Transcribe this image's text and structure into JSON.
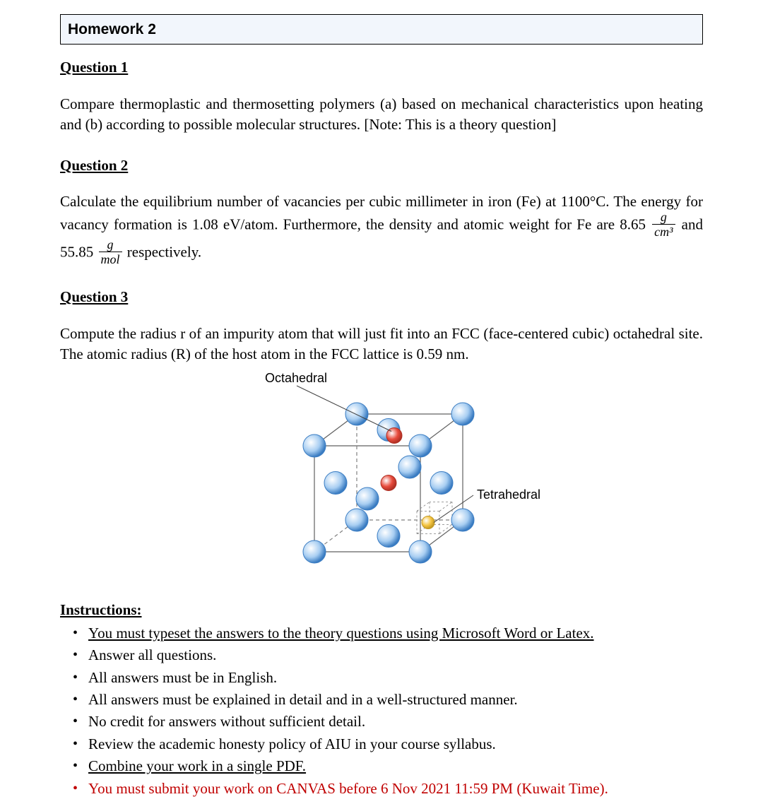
{
  "title": "Homework 2",
  "q1": {
    "heading": "Question 1",
    "body": "Compare thermoplastic and thermosetting polymers (a) based on mechanical characteristics upon heating and (b) according to possible molecular structures. [Note: This is a theory question]"
  },
  "q2": {
    "heading": "Question 2",
    "body_pre": "Calculate the equilibrium number of vacancies per cubic millimeter in iron (Fe) at 1100°C. The energy for vacancy formation is 1.08 eV/atom. Furthermore, the density and atomic weight for Fe are 8.65 ",
    "frac1_num": "g",
    "frac1_den": "cm³",
    "body_mid": " and 55.85 ",
    "frac2_num": "g",
    "frac2_den": "mol",
    "body_post": " respectively."
  },
  "q3": {
    "heading": "Question 3",
    "body": "Compute the radius r of an impurity atom that will just fit into an FCC (face-centered cubic) octahedral site. The atomic radius (R) of the host atom in the FCC lattice is 0.59 nm.",
    "figure": {
      "label_oct": "Octahedral",
      "label_tet": "Tetrahedral",
      "colors": {
        "host_atom_fill": "#a8cef2",
        "host_atom_stroke": "#3a7cc2",
        "octahedral_fill": "#e84c3d",
        "octahedral_stroke": "#b03024",
        "tetrahedral_fill": "#f5c542",
        "tetrahedral_stroke": "#c49a24",
        "cube_edge": "#606060",
        "cube_edge_dashed": "#808080",
        "leader": "#404040"
      },
      "font_family": "Arial",
      "font_size": 18
    }
  },
  "instructions": {
    "heading": "Instructions:",
    "items": [
      {
        "text": "You must typeset the answers to the theory questions using Microsoft Word or Latex.",
        "underline": true,
        "red": false
      },
      {
        "text": "Answer all questions.",
        "underline": false,
        "red": false
      },
      {
        "text": "All answers must be in English.",
        "underline": false,
        "red": false
      },
      {
        "text": "All answers must be explained in detail and in a well-structured manner.",
        "underline": false,
        "red": false
      },
      {
        "text": "No credit for answers without sufficient detail.",
        "underline": false,
        "red": false
      },
      {
        "text": "Review the academic honesty policy of AIU in your course syllabus.",
        "underline": false,
        "red": false
      },
      {
        "text": "Combine your work in a single PDF.",
        "underline": true,
        "red": false
      },
      {
        "text": "You must submit your work on CANVAS before 6 Nov 2021 11:59 PM (Kuwait Time).",
        "underline": false,
        "red": true
      }
    ]
  }
}
